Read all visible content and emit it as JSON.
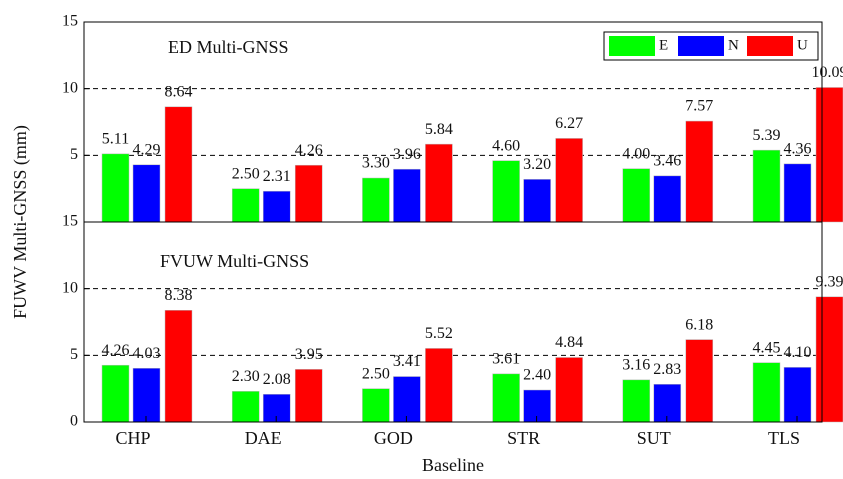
{
  "chart_data": [
    {
      "type": "bar",
      "title": "ED Multi-GNSS",
      "ylabel": "FUWV Multi-GNSS (mm)",
      "ylim": [
        0,
        15
      ],
      "yticks": [
        5,
        10,
        15
      ],
      "grid": true,
      "grid_values": [
        5,
        10
      ],
      "legend": "upper right",
      "series": [
        {
          "name": "E",
          "color": "#00ff00",
          "values": [
            5.11,
            2.5,
            3.3,
            4.6,
            4.0,
            5.39
          ],
          "value_labels": [
            "5.11",
            "2.50",
            "3.30",
            "4.60",
            "4.00",
            "5.39"
          ]
        },
        {
          "name": "N",
          "color": "#0000ff",
          "values": [
            4.29,
            2.31,
            3.96,
            3.2,
            3.46,
            4.36
          ],
          "value_labels": [
            "4.29",
            "2.31",
            "3.96",
            "3.20",
            "3.46",
            "4.36"
          ]
        },
        {
          "name": "U",
          "color": "#ff0000",
          "values": [
            8.64,
            4.26,
            5.84,
            6.27,
            7.57,
            10.09
          ],
          "value_labels": [
            "8.64",
            "4.26",
            "5.84",
            "6.27",
            "7.57",
            "10.09"
          ]
        }
      ]
    },
    {
      "type": "bar",
      "title": "FVUW Multi-GNSS",
      "xlabel": "Baseline",
      "categories": [
        "CHP",
        "DAE",
        "GOD",
        "STR",
        "SUT",
        "TLS"
      ],
      "ylim": [
        0,
        15
      ],
      "yticks": [
        0,
        5,
        10,
        15
      ],
      "grid": true,
      "grid_values": [
        5,
        10
      ],
      "series": [
        {
          "color": "#00ff00",
          "values": [
            4.26,
            2.3,
            2.5,
            3.61,
            3.16,
            4.45
          ],
          "value_labels": [
            "4.26",
            "2.30",
            "2.50",
            "3.61",
            "3.16",
            "4.45"
          ]
        },
        {
          "color": "#0000ff",
          "values": [
            4.03,
            2.08,
            3.41,
            2.4,
            2.83,
            4.1
          ],
          "value_labels": [
            "4.03",
            "2.08",
            "3.41",
            "2.40",
            "2.83",
            "4.10"
          ]
        },
        {
          "color": "#ff0000",
          "values": [
            8.38,
            3.95,
            5.52,
            4.84,
            6.18,
            9.39
          ],
          "value_labels": [
            "8.38",
            "3.95",
            "5.52",
            "4.84",
            "6.18",
            "9.39"
          ]
        }
      ]
    }
  ]
}
